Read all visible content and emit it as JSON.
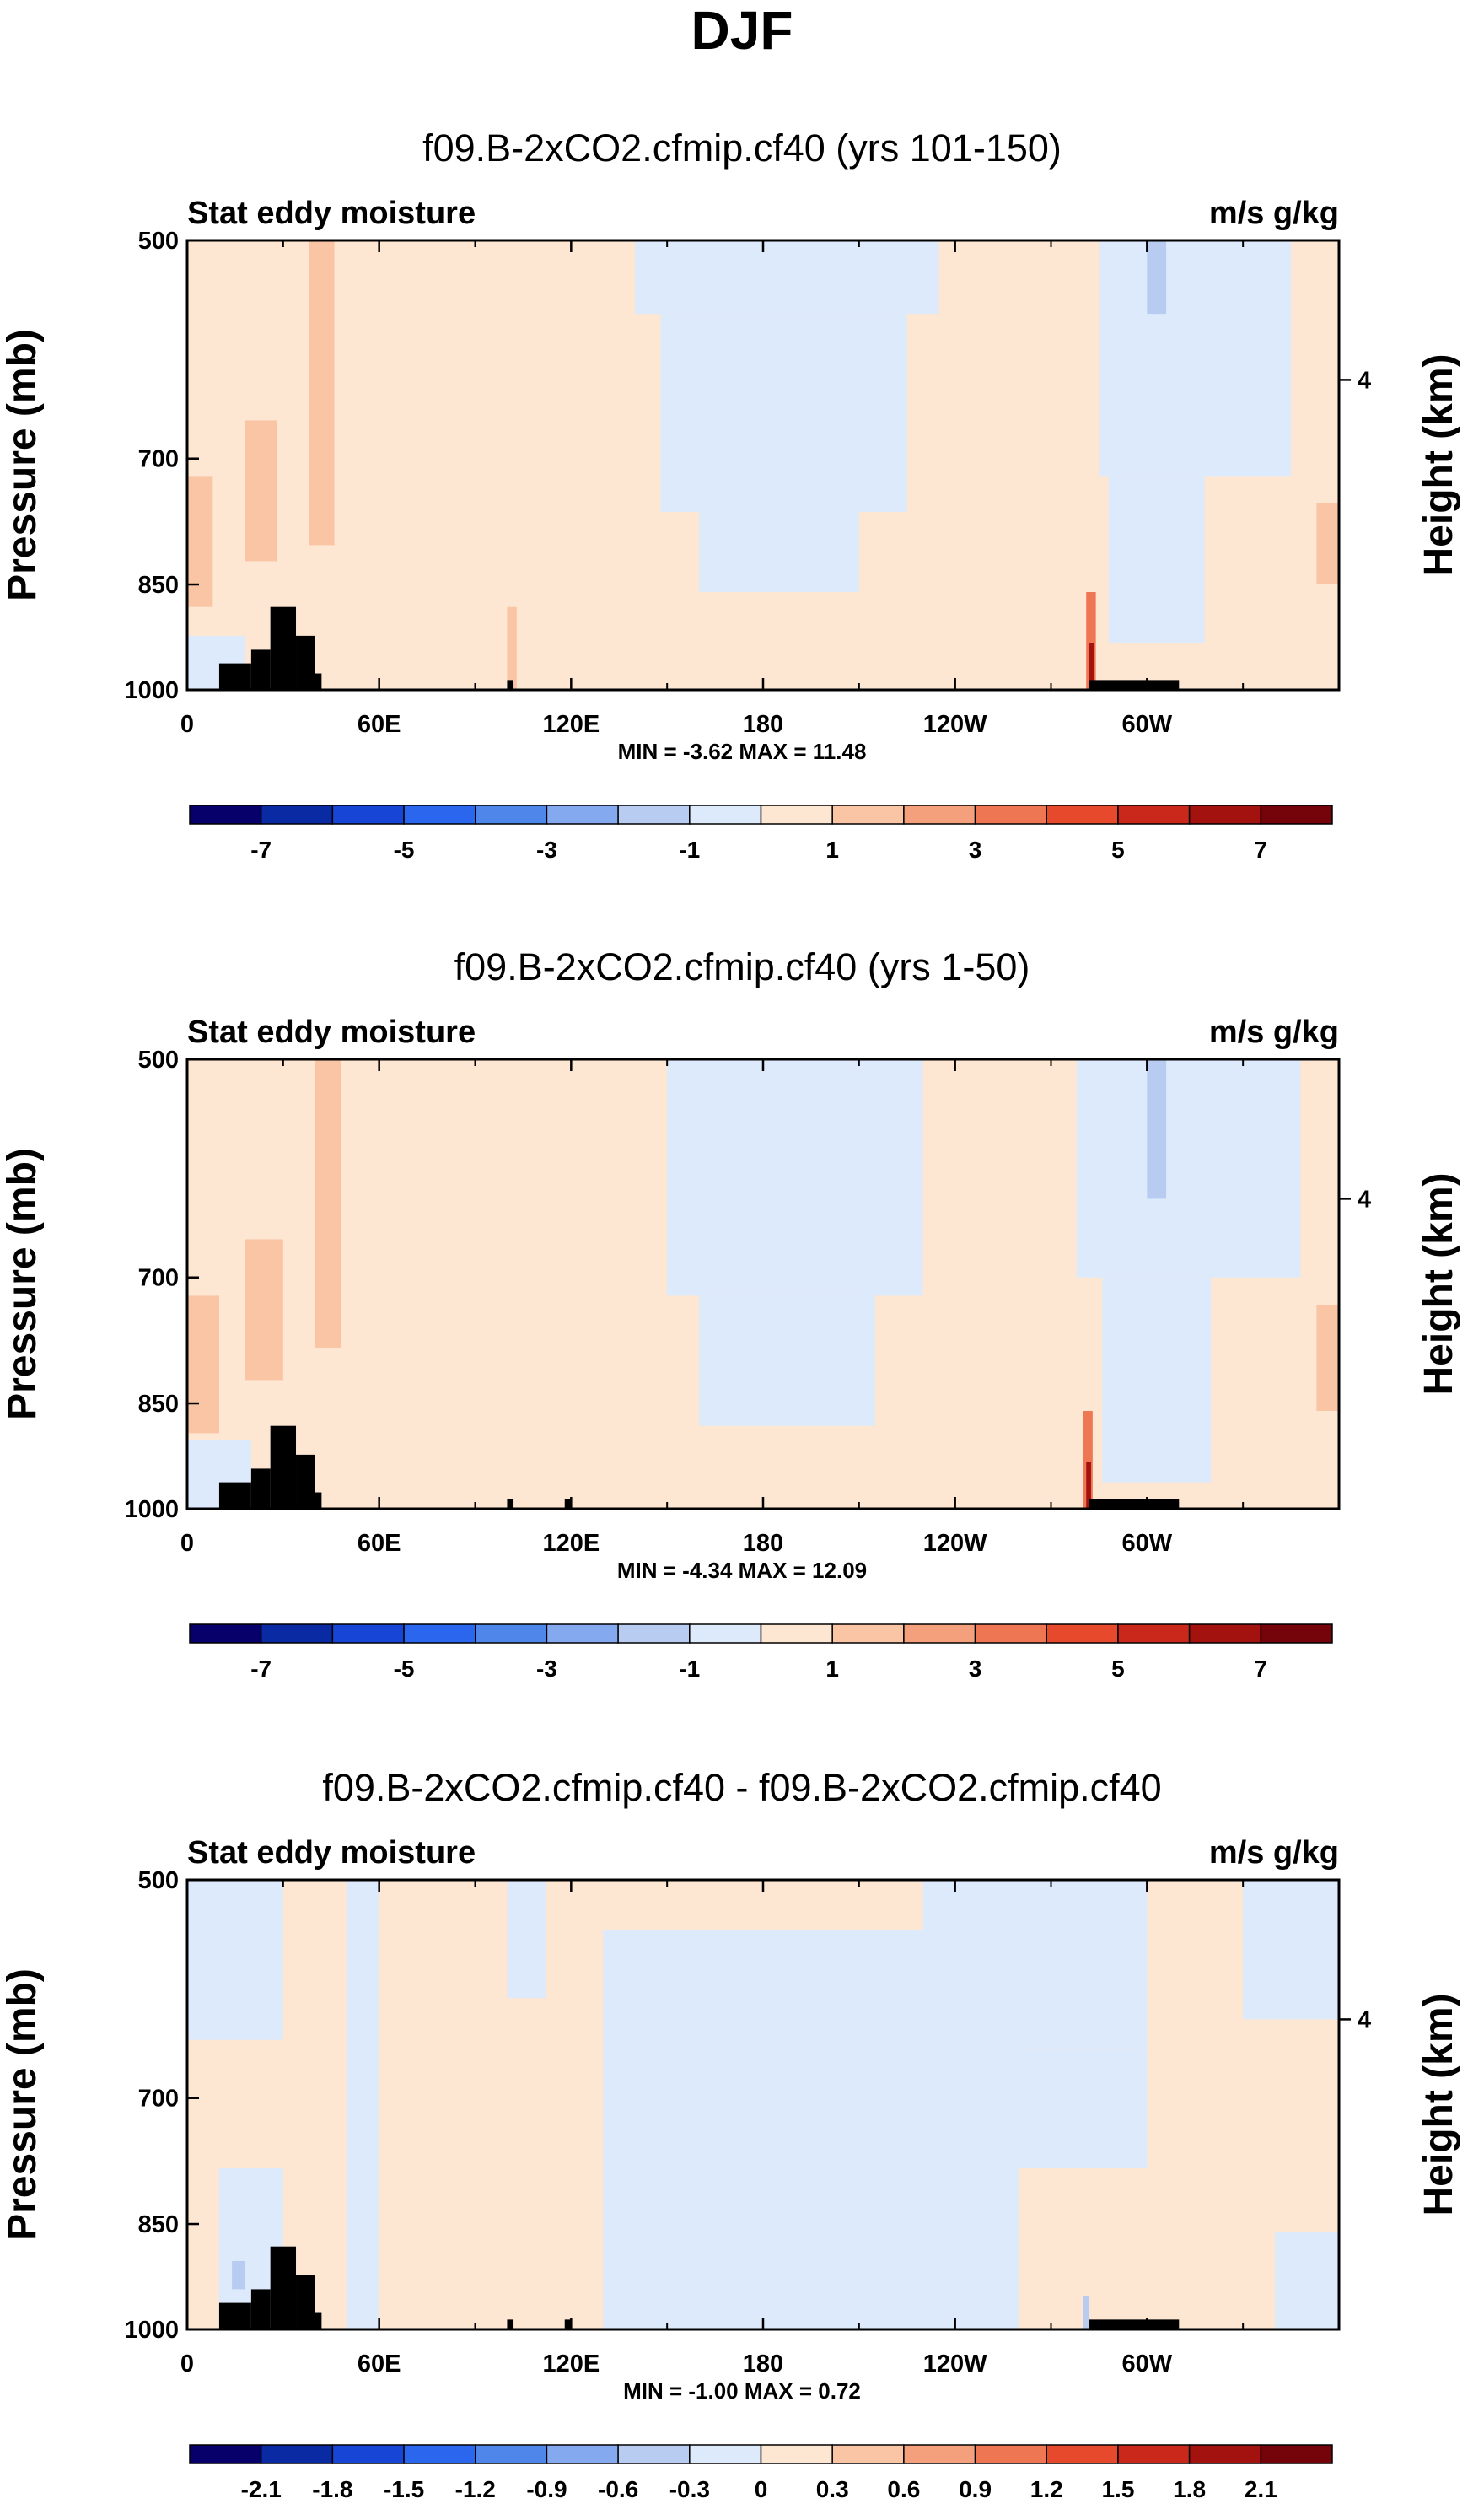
{
  "title": "DJF",
  "colors": {
    "background": "#ffffff",
    "axis": "#000000",
    "topography": "#000000",
    "palette": [
      "#08006a",
      "#0a2aa3",
      "#1746d6",
      "#2a66ee",
      "#4e86ea",
      "#84a9ee",
      "#b8ccf2",
      "#ddeafb",
      "#fde6d2",
      "#f9c5a5",
      "#f4a07d",
      "#ef7652",
      "#e6492c",
      "#c9281a",
      "#a3120f",
      "#74030a"
    ]
  },
  "chart_data": [
    {
      "type": "heatmap",
      "title": "f09.B-2xCO2.cfmip.cf40 (yrs 101-150)",
      "left_label": "Stat eddy moisture",
      "right_label": "m/s g/kg",
      "ylabel": "Pressure (mb)",
      "ylabel_right": "Height (km)",
      "y_ticks": [
        "500",
        "700",
        "850",
        "1000"
      ],
      "y_tick_values": [
        500,
        700,
        850,
        1000
      ],
      "ylim": [
        1000,
        500
      ],
      "y_right_ticks": [
        "4"
      ],
      "y_right_tick_pressure": [
        620
      ],
      "x_ticks": [
        "0",
        "60E",
        "120E",
        "180",
        "120W",
        "60W"
      ],
      "x_tick_values": [
        0,
        60,
        120,
        180,
        240,
        300
      ],
      "xlim": [
        0,
        360
      ],
      "stats": "MIN =  -3.62  MAX =  11.48",
      "colorbar": {
        "levels": [
          "-7",
          "-5",
          "-3",
          "-1",
          "1",
          "3",
          "5",
          "7"
        ],
        "level_values": [
          -7,
          -5,
          -3,
          -1,
          1,
          3,
          5,
          7
        ],
        "boundaries": [
          -8,
          -7,
          -6,
          -5,
          -4,
          -3,
          -2,
          -1,
          0,
          1,
          2,
          3,
          4,
          5,
          6,
          7,
          8
        ]
      },
      "regions": [
        {
          "lon": [
            0,
            360
          ],
          "p": [
            500,
            1000
          ],
          "v": 0.5
        },
        {
          "lon": [
            140,
            235
          ],
          "p": [
            500,
            560
          ],
          "v": -0.5
        },
        {
          "lon": [
            148,
            225
          ],
          "p": [
            560,
            760
          ],
          "v": -0.5
        },
        {
          "lon": [
            160,
            210
          ],
          "p": [
            760,
            860
          ],
          "v": -0.5
        },
        {
          "lon": [
            285,
            345
          ],
          "p": [
            500,
            720
          ],
          "v": -0.5
        },
        {
          "lon": [
            288,
            318
          ],
          "p": [
            720,
            930
          ],
          "v": -0.5
        },
        {
          "lon": [
            300,
            306
          ],
          "p": [
            500,
            560
          ],
          "v": -1.5
        },
        {
          "lon": [
            0,
            8
          ],
          "p": [
            720,
            880
          ],
          "v": 1.5
        },
        {
          "lon": [
            18,
            28
          ],
          "p": [
            660,
            820
          ],
          "v": 1.5
        },
        {
          "lon": [
            38,
            46
          ],
          "p": [
            500,
            800
          ],
          "v": 1.5
        },
        {
          "lon": [
            0,
            18
          ],
          "p": [
            920,
            1000
          ],
          "v": -0.5
        },
        {
          "lon": [
            100,
            103
          ],
          "p": [
            880,
            1000
          ],
          "v": 1.5
        },
        {
          "lon": [
            281,
            284
          ],
          "p": [
            860,
            1000
          ],
          "v": 3.5
        },
        {
          "lon": [
            282,
            283.5
          ],
          "p": [
            930,
            1000
          ],
          "v": 6.5
        },
        {
          "lon": [
            353,
            360
          ],
          "p": [
            750,
            850
          ],
          "v": 1.5
        }
      ],
      "topography": [
        {
          "lon": [
            10,
            20
          ],
          "p": [
            960,
            1000
          ]
        },
        {
          "lon": [
            20,
            26
          ],
          "p": [
            940,
            1000
          ]
        },
        {
          "lon": [
            26,
            34
          ],
          "p": [
            880,
            1000
          ]
        },
        {
          "lon": [
            34,
            40
          ],
          "p": [
            920,
            1000
          ]
        },
        {
          "lon": [
            40,
            42
          ],
          "p": [
            975,
            1000
          ]
        },
        {
          "lon": [
            100,
            102
          ],
          "p": [
            985,
            1000
          ]
        },
        {
          "lon": [
            282,
            310
          ],
          "p": [
            985,
            1000
          ]
        }
      ]
    },
    {
      "type": "heatmap",
      "title": "f09.B-2xCO2.cfmip.cf40 (yrs 1-50)",
      "left_label": "Stat eddy moisture",
      "right_label": "m/s g/kg",
      "ylabel": "Pressure (mb)",
      "ylabel_right": "Height (km)",
      "y_ticks": [
        "500",
        "700",
        "850",
        "1000"
      ],
      "y_tick_values": [
        500,
        700,
        850,
        1000
      ],
      "ylim": [
        1000,
        500
      ],
      "y_right_ticks": [
        "4"
      ],
      "y_right_tick_pressure": [
        620
      ],
      "x_ticks": [
        "0",
        "60E",
        "120E",
        "180",
        "120W",
        "60W"
      ],
      "x_tick_values": [
        0,
        60,
        120,
        180,
        240,
        300
      ],
      "xlim": [
        0,
        360
      ],
      "stats": "MIN =  -4.34  MAX =  12.09",
      "colorbar": {
        "levels": [
          "-7",
          "-5",
          "-3",
          "-1",
          "1",
          "3",
          "5",
          "7"
        ],
        "level_values": [
          -7,
          -5,
          -3,
          -1,
          1,
          3,
          5,
          7
        ],
        "boundaries": [
          -8,
          -7,
          -6,
          -5,
          -4,
          -3,
          -2,
          -1,
          0,
          1,
          2,
          3,
          4,
          5,
          6,
          7,
          8
        ]
      },
      "regions": [
        {
          "lon": [
            0,
            360
          ],
          "p": [
            500,
            1000
          ],
          "v": 0.5
        },
        {
          "lon": [
            150,
            230
          ],
          "p": [
            500,
            720
          ],
          "v": -0.5
        },
        {
          "lon": [
            160,
            215
          ],
          "p": [
            720,
            880
          ],
          "v": -0.5
        },
        {
          "lon": [
            278,
            348
          ],
          "p": [
            500,
            700
          ],
          "v": -0.5
        },
        {
          "lon": [
            286,
            320
          ],
          "p": [
            700,
            960
          ],
          "v": -0.5
        },
        {
          "lon": [
            300,
            306
          ],
          "p": [
            500,
            620
          ],
          "v": -1.5
        },
        {
          "lon": [
            0,
            10
          ],
          "p": [
            720,
            890
          ],
          "v": 1.5
        },
        {
          "lon": [
            18,
            30
          ],
          "p": [
            660,
            820
          ],
          "v": 1.5
        },
        {
          "lon": [
            40,
            48
          ],
          "p": [
            500,
            780
          ],
          "v": 1.5
        },
        {
          "lon": [
            0,
            20
          ],
          "p": [
            900,
            1000
          ],
          "v": -0.5
        },
        {
          "lon": [
            280,
            283
          ],
          "p": [
            860,
            1000
          ],
          "v": 3.5
        },
        {
          "lon": [
            281,
            282.5
          ],
          "p": [
            930,
            1000
          ],
          "v": 6.5
        },
        {
          "lon": [
            353,
            360
          ],
          "p": [
            730,
            860
          ],
          "v": 1.5
        }
      ],
      "topography": [
        {
          "lon": [
            10,
            20
          ],
          "p": [
            960,
            1000
          ]
        },
        {
          "lon": [
            20,
            26
          ],
          "p": [
            940,
            1000
          ]
        },
        {
          "lon": [
            26,
            34
          ],
          "p": [
            880,
            1000
          ]
        },
        {
          "lon": [
            34,
            40
          ],
          "p": [
            920,
            1000
          ]
        },
        {
          "lon": [
            40,
            42
          ],
          "p": [
            975,
            1000
          ]
        },
        {
          "lon": [
            100,
            102
          ],
          "p": [
            985,
            1000
          ]
        },
        {
          "lon": [
            118,
            120
          ],
          "p": [
            985,
            1000
          ]
        },
        {
          "lon": [
            282,
            310
          ],
          "p": [
            985,
            1000
          ]
        }
      ]
    },
    {
      "type": "heatmap",
      "title": "f09.B-2xCO2.cfmip.cf40 - f09.B-2xCO2.cfmip.cf40",
      "left_label": "Stat eddy moisture",
      "right_label": "m/s g/kg",
      "ylabel": "Pressure (mb)",
      "ylabel_right": "Height (km)",
      "y_ticks": [
        "500",
        "700",
        "850",
        "1000"
      ],
      "y_tick_values": [
        500,
        700,
        850,
        1000
      ],
      "ylim": [
        1000,
        500
      ],
      "y_right_ticks": [
        "4"
      ],
      "y_right_tick_pressure": [
        620
      ],
      "x_ticks": [
        "0",
        "60E",
        "120E",
        "180",
        "120W",
        "60W"
      ],
      "x_tick_values": [
        0,
        60,
        120,
        180,
        240,
        300
      ],
      "xlim": [
        0,
        360
      ],
      "stats": "MIN =  -1.00  MAX =   0.72",
      "colorbar": {
        "levels": [
          "-2.1",
          "-1.8",
          "-1.5",
          "-1.2",
          "-0.9",
          "-0.6",
          "-0.3",
          "0",
          "0.3",
          "0.6",
          "0.9",
          "1.2",
          "1.5",
          "1.8",
          "2.1"
        ],
        "level_values": [
          -2.1,
          -1.8,
          -1.5,
          -1.2,
          -0.9,
          -0.6,
          -0.3,
          0,
          0.3,
          0.6,
          0.9,
          1.2,
          1.5,
          1.8,
          2.1
        ],
        "boundaries": [
          -2.4,
          -2.1,
          -1.8,
          -1.5,
          -1.2,
          -0.9,
          -0.6,
          -0.3,
          0,
          0.3,
          0.6,
          0.9,
          1.2,
          1.5,
          1.8,
          2.1,
          2.4
        ]
      },
      "regions": [
        {
          "lon": [
            0,
            360
          ],
          "p": [
            500,
            1000
          ],
          "v": 0.15
        },
        {
          "lon": [
            0,
            30
          ],
          "p": [
            500,
            640
          ],
          "v": -0.15
        },
        {
          "lon": [
            50,
            60
          ],
          "p": [
            500,
            1000
          ],
          "v": -0.15
        },
        {
          "lon": [
            100,
            112
          ],
          "p": [
            500,
            600
          ],
          "v": -0.15
        },
        {
          "lon": [
            130,
            260
          ],
          "p": [
            540,
            1000
          ],
          "v": -0.15
        },
        {
          "lon": [
            230,
            300
          ],
          "p": [
            500,
            650
          ],
          "v": -0.15
        },
        {
          "lon": [
            255,
            300
          ],
          "p": [
            650,
            780
          ],
          "v": -0.15
        },
        {
          "lon": [
            330,
            360
          ],
          "p": [
            500,
            620
          ],
          "v": -0.15
        },
        {
          "lon": [
            340,
            360
          ],
          "p": [
            860,
            1000
          ],
          "v": -0.15
        },
        {
          "lon": [
            10,
            30
          ],
          "p": [
            780,
            1000
          ],
          "v": -0.15
        },
        {
          "lon": [
            14,
            18
          ],
          "p": [
            900,
            940
          ],
          "v": -0.45
        },
        {
          "lon": [
            280,
            282
          ],
          "p": [
            950,
            1000
          ],
          "v": -0.45
        }
      ],
      "topography": [
        {
          "lon": [
            10,
            20
          ],
          "p": [
            960,
            1000
          ]
        },
        {
          "lon": [
            20,
            26
          ],
          "p": [
            940,
            1000
          ]
        },
        {
          "lon": [
            26,
            34
          ],
          "p": [
            880,
            1000
          ]
        },
        {
          "lon": [
            34,
            40
          ],
          "p": [
            920,
            1000
          ]
        },
        {
          "lon": [
            40,
            42
          ],
          "p": [
            975,
            1000
          ]
        },
        {
          "lon": [
            100,
            102
          ],
          "p": [
            985,
            1000
          ]
        },
        {
          "lon": [
            118,
            120
          ],
          "p": [
            985,
            1000
          ]
        },
        {
          "lon": [
            282,
            310
          ],
          "p": [
            985,
            1000
          ]
        }
      ]
    }
  ]
}
